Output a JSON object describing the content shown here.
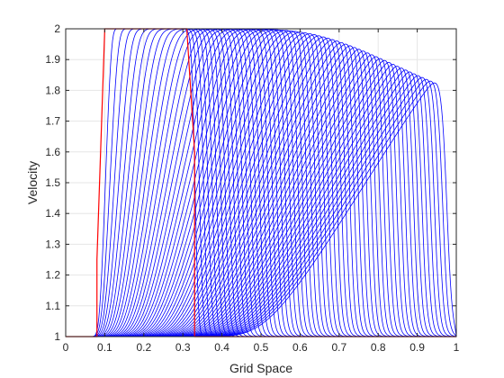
{
  "chart_data": {
    "type": "line",
    "title": "",
    "xlabel": "Grid Space",
    "ylabel": "Velocity",
    "xlim": [
      0,
      1
    ],
    "ylim": [
      1,
      2
    ],
    "xticks": [
      "0",
      "0.1",
      "0.2",
      "0.3",
      "0.4",
      "0.5",
      "0.6",
      "0.7",
      "0.8",
      "0.9",
      "1"
    ],
    "yticks": [
      "1",
      "1.1",
      "1.2",
      "1.3",
      "1.4",
      "1.5",
      "1.6",
      "1.7",
      "1.8",
      "1.9",
      "2"
    ],
    "grid": true,
    "box": true,
    "colors": {
      "family": "#0000ff",
      "reference": "#ff0000",
      "axes": "#262626",
      "grid": "#e6e6e6"
    },
    "family_description": "Time evolution of a square velocity pulse (first-order upwind advection with diffusion)",
    "family_count": 60,
    "family_params": {
      "initial_left": 0.1,
      "initial_right": 0.32,
      "final_peak_x": 0.62,
      "final_peak_y": 1.85,
      "final_tail_end": 0.93
    },
    "series": [
      {
        "color": "#ff0000",
        "x": [
          0,
          0.08,
          0.08,
          0.1,
          0.1,
          0.31,
          0.31,
          0.33,
          0.33,
          1
        ],
        "y": [
          1,
          1,
          1.25,
          2,
          2,
          2,
          2,
          1.6,
          1,
          1
        ]
      }
    ]
  }
}
